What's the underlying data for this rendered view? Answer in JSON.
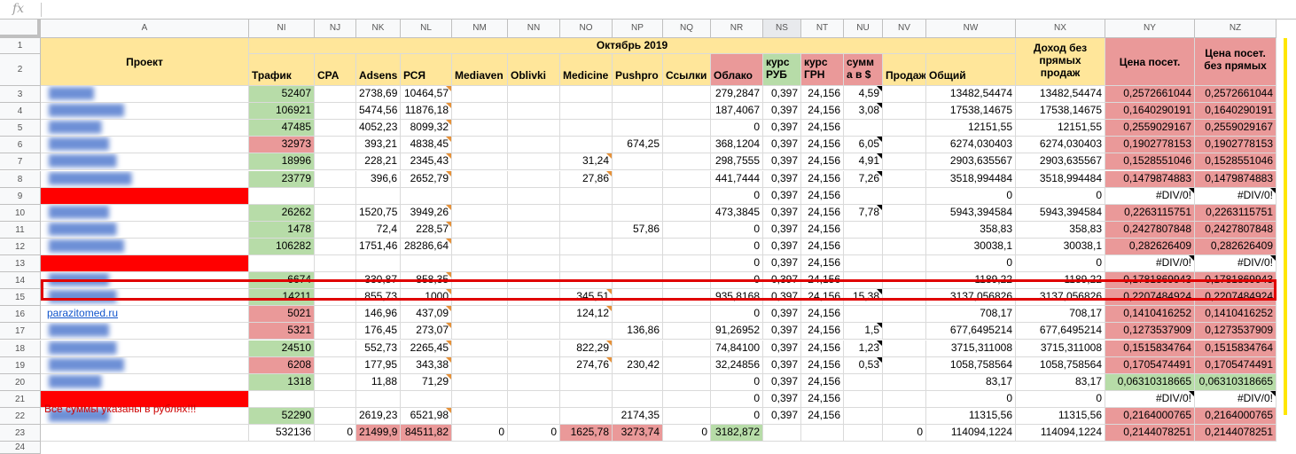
{
  "formula_bar": {
    "icon": "fx",
    "value": ""
  },
  "columns": [
    "A",
    "NI",
    "NJ",
    "NK",
    "NL",
    "NM",
    "NN",
    "NO",
    "NP",
    "NQ",
    "NR",
    "NS",
    "NT",
    "NU",
    "NV",
    "NW",
    "NX",
    "NY",
    "NZ"
  ],
  "selected_column": "NS",
  "rows": [
    "1",
    "2",
    "3",
    "4",
    "5",
    "6",
    "7",
    "8",
    "9",
    "10",
    "11",
    "12",
    "13",
    "14",
    "15",
    "16",
    "17",
    "18",
    "19",
    "20",
    "21",
    "22",
    "23",
    "24"
  ],
  "header": {
    "project": "Проект",
    "month": "Октябрь 2019",
    "cols": [
      "Трафик",
      "CPA",
      "Adsens",
      "РСЯ",
      "Mediaven",
      "Oblivki",
      "Medicine",
      "Pushpro",
      "Ссылки",
      "Облако",
      "курс РУБ",
      "курс ГРН",
      "сумм а в $",
      "Продаж",
      "Общий"
    ],
    "income": "Доход без прямых продаж",
    "price_visit": "Цена посет.",
    "price_visit_no_direct": "Цена посет. без прямых"
  },
  "data_rows": [
    {
      "n": "3",
      "site": "██████",
      "cells": [
        "52407",
        "",
        "2738,69",
        "10464,57",
        "",
        "",
        "",
        "",
        "",
        "279,2847",
        "0,397",
        "24,156",
        "4,59",
        "",
        "13482,54474",
        "13482,54474",
        "0,2572661044",
        "0,2572661044"
      ]
    },
    {
      "n": "4",
      "site": "██████████",
      "cells": [
        "106921",
        "",
        "5474,56",
        "11876,18",
        "",
        "",
        "",
        "",
        "",
        "187,4067",
        "0,397",
        "24,156",
        "3,08",
        "",
        "17538,14675",
        "17538,14675",
        "0,1640290191",
        "0,1640290191"
      ]
    },
    {
      "n": "5",
      "site": "███████",
      "cells": [
        "47485",
        "",
        "4052,23",
        "8099,32",
        "",
        "",
        "",
        "",
        "",
        "0",
        "0,397",
        "24,156",
        "",
        "",
        "12151,55",
        "12151,55",
        "0,2559029167",
        "0,2559029167"
      ]
    },
    {
      "n": "6",
      "site": "████████",
      "cells": [
        "32973",
        "",
        "393,21",
        "4838,45",
        "",
        "",
        "",
        "674,25",
        "",
        "368,1204",
        "0,397",
        "24,156",
        "6,05",
        "",
        "6274,030403",
        "6274,030403",
        "0,1902778153",
        "0,1902778153"
      ]
    },
    {
      "n": "7",
      "site": "█████████",
      "cells": [
        "18996",
        "",
        "228,21",
        "2345,43",
        "",
        "",
        "31,24",
        "",
        "",
        "298,7555",
        "0,397",
        "24,156",
        "4,91",
        "",
        "2903,635567",
        "2903,635567",
        "0,1528551046",
        "0,1528551046"
      ]
    },
    {
      "n": "8",
      "site": "███████████",
      "cells": [
        "23779",
        "",
        "396,6",
        "2652,79",
        "",
        "",
        "27,86",
        "",
        "",
        "441,7444",
        "0,397",
        "24,156",
        "7,26",
        "",
        "3518,994484",
        "3518,994484",
        "0,1479874883",
        "0,1479874883"
      ]
    },
    {
      "n": "9",
      "site": "",
      "cells": [
        "",
        "",
        "",
        "",
        "",
        "",
        "",
        "",
        "",
        "0",
        "0,397",
        "24,156",
        "",
        "",
        "0",
        "0",
        "#DIV/0!",
        "#DIV/0!"
      ]
    },
    {
      "n": "10",
      "site": "████████",
      "cells": [
        "26262",
        "",
        "1520,75",
        "3949,26",
        "",
        "",
        "",
        "",
        "",
        "473,3845",
        "0,397",
        "24,156",
        "7,78",
        "",
        "5943,394584",
        "5943,394584",
        "0,2263115751",
        "0,2263115751"
      ]
    },
    {
      "n": "11",
      "site": "█████████",
      "cells": [
        "1478",
        "",
        "72,4",
        "228,57",
        "",
        "",
        "",
        "57,86",
        "",
        "0",
        "0,397",
        "24,156",
        "",
        "",
        "358,83",
        "358,83",
        "0,2427807848",
        "0,2427807848"
      ]
    },
    {
      "n": "12",
      "site": "██████████",
      "cells": [
        "106282",
        "",
        "1751,46",
        "28286,64",
        "",
        "",
        "",
        "",
        "",
        "0",
        "0,397",
        "24,156",
        "",
        "",
        "30038,1",
        "30038,1",
        "0,282626409",
        "0,282626409"
      ]
    },
    {
      "n": "13",
      "site": "",
      "cells": [
        "",
        "",
        "",
        "",
        "",
        "",
        "",
        "",
        "",
        "0",
        "0,397",
        "24,156",
        "",
        "",
        "0",
        "0",
        "#DIV/0!",
        "#DIV/0!"
      ]
    },
    {
      "n": "14",
      "site": "████████",
      "cells": [
        "6674",
        "",
        "330,87",
        "858,35",
        "",
        "",
        "",
        "",
        "",
        "0",
        "0,397",
        "24,156",
        "",
        "",
        "1189,22",
        "1189,22",
        "0,1781869943",
        "0,1781869943"
      ]
    },
    {
      "n": "15",
      "site": "█████████",
      "cells": [
        "14211",
        "",
        "855,73",
        "1000",
        "",
        "",
        "345,51",
        "",
        "",
        "935,8168",
        "0,397",
        "24,156",
        "15,38",
        "",
        "3137,056826",
        "3137,056826",
        "0,2207484924",
        "0,2207484924"
      ]
    },
    {
      "n": "16",
      "site": "parazitomed.ru",
      "cells": [
        "5021",
        "",
        "146,96",
        "437,09",
        "",
        "",
        "124,12",
        "",
        "",
        "0",
        "0,397",
        "24,156",
        "",
        "",
        "708,17",
        "708,17",
        "0,1410416252",
        "0,1410416252"
      ]
    },
    {
      "n": "17",
      "site": "████████",
      "cells": [
        "5321",
        "",
        "176,45",
        "273,07",
        "",
        "",
        "",
        "136,86",
        "",
        "91,26952",
        "0,397",
        "24,156",
        "1,5",
        "",
        "677,6495214",
        "677,6495214",
        "0,1273537909",
        "0,1273537909"
      ]
    },
    {
      "n": "18",
      "site": "█████████",
      "cells": [
        "24510",
        "",
        "552,73",
        "2265,45",
        "",
        "",
        "822,29",
        "",
        "",
        "74,84100",
        "0,397",
        "24,156",
        "1,23",
        "",
        "3715,311008",
        "3715,311008",
        "0,1515834764",
        "0,1515834764"
      ]
    },
    {
      "n": "19",
      "site": "██████████",
      "cells": [
        "6208",
        "",
        "177,95",
        "343,38",
        "",
        "",
        "274,76",
        "230,42",
        "",
        "32,24856",
        "0,397",
        "24,156",
        "0,53",
        "",
        "1058,758564",
        "1058,758564",
        "0,1705474491",
        "0,1705474491"
      ]
    },
    {
      "n": "20",
      "site": "███████",
      "cells": [
        "1318",
        "",
        "11,88",
        "71,29",
        "",
        "",
        "",
        "",
        "",
        "0",
        "0,397",
        "24,156",
        "",
        "",
        "83,17",
        "83,17",
        "0,06310318665",
        "0,06310318665"
      ]
    },
    {
      "n": "21",
      "site": "",
      "cells": [
        "",
        "",
        "",
        "",
        "",
        "",
        "",
        "",
        "",
        "0",
        "0,397",
        "24,156",
        "",
        "",
        "0",
        "0",
        "#DIV/0!",
        "#DIV/0!"
      ]
    },
    {
      "n": "22",
      "site": "████████",
      "cells": [
        "52290",
        "",
        "2619,23",
        "6521,98",
        "",
        "",
        "",
        "2174,35",
        "",
        "0",
        "0,397",
        "24,156",
        "",
        "",
        "11315,56",
        "11315,56",
        "0,2164000765",
        "0,2164000765"
      ]
    },
    {
      "n": "23",
      "site": "",
      "cells": [
        "532136",
        "0",
        "21499,9",
        "84511,82",
        "0",
        "0",
        "1625,78",
        "3273,74",
        "0",
        "3182,872",
        "",
        "",
        "",
        "0",
        "114094,1224",
        "114094,1224",
        "0,2144078251",
        "0,2144078251"
      ]
    }
  ],
  "footnote": "Все суммы указаны в рублях!!!",
  "colors": {
    "yellow": "#ffe69a",
    "green": "#b7dca8",
    "pink": "#ea9999",
    "red": "#ff0000",
    "highlight": "#e00000"
  }
}
